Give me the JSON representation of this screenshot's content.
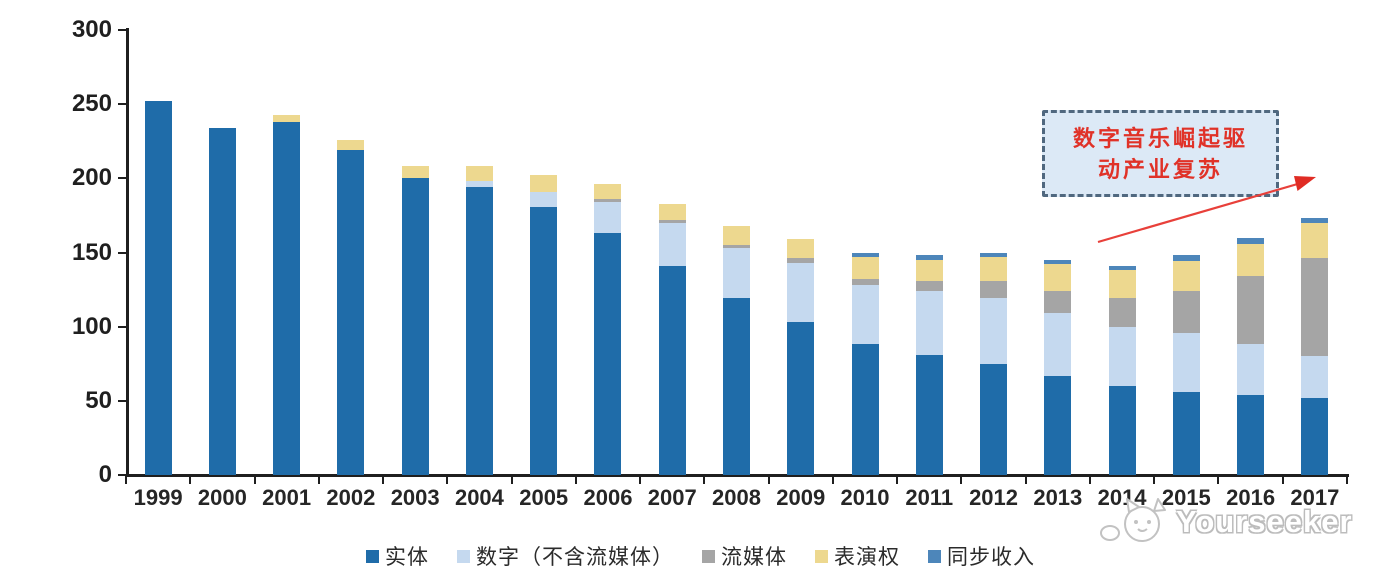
{
  "chart_data": {
    "type": "bar",
    "stacked": true,
    "title": "",
    "categories": [
      "1999",
      "2000",
      "2001",
      "2002",
      "2003",
      "2004",
      "2005",
      "2006",
      "2007",
      "2008",
      "2009",
      "2010",
      "2011",
      "2012",
      "2013",
      "2014",
      "2015",
      "2016",
      "2017"
    ],
    "series": [
      {
        "name": "实体",
        "color": "#1F6CA9",
        "values": [
          252,
          234,
          238,
          219,
          200,
          194,
          181,
          163,
          141,
          119,
          103,
          88,
          81,
          75,
          67,
          60,
          56,
          54,
          52
        ]
      },
      {
        "name": "数字（不含流媒体）",
        "color": "#C5D9EF",
        "values": [
          0,
          0,
          0,
          0,
          0,
          4,
          10,
          21,
          29,
          34,
          40,
          40,
          43,
          44,
          42,
          40,
          40,
          34,
          28
        ]
      },
      {
        "name": "流媒体",
        "color": "#A5A5A5",
        "values": [
          0,
          0,
          0,
          0,
          0,
          0,
          0,
          2,
          2,
          2,
          3,
          4,
          7,
          12,
          15,
          19,
          28,
          46,
          66
        ]
      },
      {
        "name": "表演权",
        "color": "#EDD88F",
        "values": [
          0,
          0,
          5,
          7,
          8,
          10,
          11,
          10,
          11,
          13,
          13,
          15,
          14,
          16,
          18,
          19,
          20,
          22,
          24
        ]
      },
      {
        "name": "同步收入",
        "color": "#4D86BA",
        "values": [
          0,
          0,
          0,
          0,
          0,
          0,
          0,
          0,
          0,
          0,
          0,
          3,
          3,
          3,
          3,
          3,
          4,
          4,
          3
        ]
      }
    ],
    "totals": [
      252,
      234,
      243,
      226,
      208,
      208,
      202,
      196,
      183,
      168,
      159,
      150,
      148,
      150,
      145,
      141,
      148,
      160,
      173
    ],
    "ylim": [
      0,
      300
    ],
    "yticks": [
      0,
      50,
      100,
      150,
      200,
      250,
      300
    ],
    "grid": false,
    "legend_position": "bottom"
  },
  "annotation": {
    "line1": "数字音乐崛起驱",
    "line2": "动产业复苏",
    "text_color": "#e03228",
    "box_fill": "#dce9f6",
    "border_color": "#50687f",
    "arrow_color": "#e8403a"
  },
  "watermark": {
    "text": "Yourseeker",
    "icon": "cat-logo",
    "color": "#bcbcbc"
  }
}
